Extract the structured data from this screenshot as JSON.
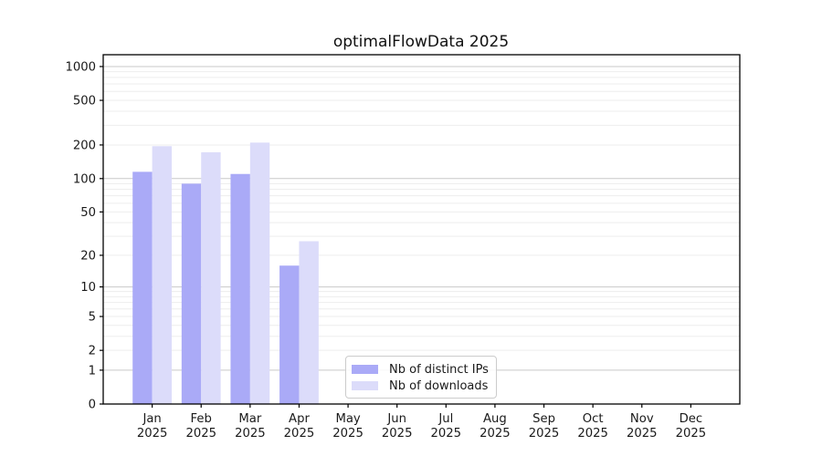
{
  "chart_data": {
    "type": "bar",
    "title": "optimalFlowData 2025",
    "scale": "log10(1+value)",
    "grid": {
      "enabled": true,
      "major_color": "#c9c9c9",
      "minor_color": "#ededed"
    },
    "axis_color": "#000000",
    "text_color": "#1a1a1a",
    "x_categories": [
      [
        "Jan",
        "2025"
      ],
      [
        "Feb",
        "2025"
      ],
      [
        "Mar",
        "2025"
      ],
      [
        "Apr",
        "2025"
      ],
      [
        "May",
        "2025"
      ],
      [
        "Jun",
        "2025"
      ],
      [
        "Jul",
        "2025"
      ],
      [
        "Aug",
        "2025"
      ],
      [
        "Sep",
        "2025"
      ],
      [
        "Oct",
        "2025"
      ],
      [
        "Nov",
        "2025"
      ],
      [
        "Dec",
        "2025"
      ]
    ],
    "y_ticks": [
      0,
      1,
      2,
      5,
      10,
      20,
      50,
      100,
      200,
      500,
      1000
    ],
    "y_major_gridlines": [
      1,
      10,
      100,
      1000
    ],
    "ylim": [
      0,
      1280
    ],
    "series": [
      {
        "name": "Nb of distinct IPs",
        "color": "#aaaaf7",
        "values": [
          115,
          90,
          110,
          16,
          0,
          0,
          0,
          0,
          0,
          0,
          0,
          0
        ]
      },
      {
        "name": "Nb of downloads",
        "color": "#dcdcfa",
        "values": [
          195,
          172,
          210,
          27,
          0,
          0,
          0,
          0,
          0,
          0,
          0,
          0
        ]
      }
    ],
    "legend_position": "bottom-center"
  }
}
